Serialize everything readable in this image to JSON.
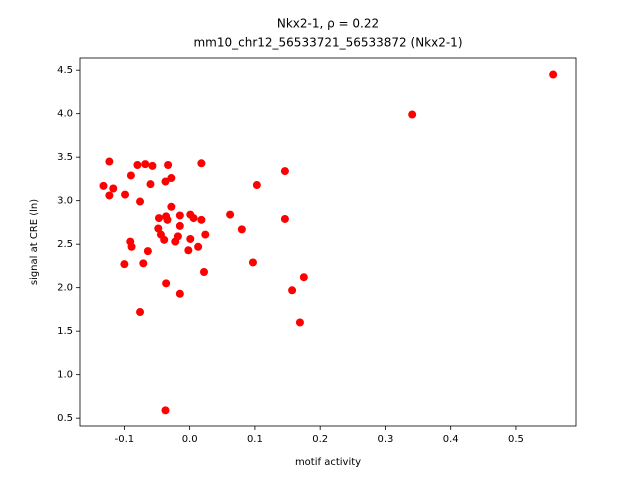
{
  "chart_data": {
    "type": "scatter",
    "title": "Nkx2-1, ρ = 0.22",
    "subtitle": "mm10_chr12_56533721_56533872 (Nkx2-1)",
    "x_label": "motif activity",
    "y_label": "signal at CRE (ln)",
    "color": "#ff0000",
    "xlim": [
      -0.168,
      0.592
    ],
    "ylim": [
      0.41,
      4.64
    ],
    "xticks": [
      -0.1,
      {
        "value": 0,
        "label": "0.0"
      },
      0.1,
      0.2,
      0.3,
      0.4,
      0.5
    ],
    "yticks": [
      0.5,
      {
        "value": 1,
        "label": "1.0"
      },
      1.5,
      {
        "value": 2,
        "label": "2.0"
      },
      2.5,
      {
        "value": 3,
        "label": "3.0"
      },
      3.5,
      {
        "value": 4,
        "label": "4.0"
      },
      4.5
    ],
    "series": [
      {
        "name": "Nkx2-1",
        "color": "#ff0000",
        "x": [
          -0.132,
          -0.123,
          -0.117,
          -0.123,
          -0.099,
          -0.09,
          -0.08,
          -0.068,
          -0.057,
          -0.06,
          -0.076,
          -0.037,
          -0.033,
          -0.028,
          0.018,
          0.103,
          0.146,
          0.341,
          0.557,
          -0.091,
          -0.089,
          -0.064,
          -0.1,
          -0.071,
          -0.047,
          -0.048,
          -0.044,
          -0.039,
          -0.036,
          -0.034,
          -0.028,
          -0.022,
          -0.015,
          -0.015,
          -0.018,
          -0.002,
          0.001,
          0.001,
          0.006,
          0.013,
          0.018,
          0.024,
          0.022,
          0.062,
          0.08,
          0.097,
          0.146,
          0.157,
          0.175,
          0.169,
          -0.036,
          -0.015,
          -0.076,
          -0.037
        ],
        "values": [
          3.17,
          3.45,
          3.14,
          3.06,
          3.07,
          3.29,
          3.41,
          3.42,
          3.4,
          3.19,
          2.99,
          3.22,
          3.41,
          3.26,
          3.43,
          3.18,
          3.34,
          3.99,
          4.45,
          2.53,
          2.47,
          2.42,
          2.27,
          2.28,
          2.8,
          2.68,
          2.61,
          2.55,
          2.82,
          2.78,
          2.93,
          2.53,
          2.83,
          2.71,
          2.59,
          2.43,
          2.56,
          2.84,
          2.8,
          2.47,
          2.78,
          2.61,
          2.18,
          2.84,
          2.67,
          2.29,
          2.79,
          1.97,
          2.12,
          1.6,
          2.05,
          1.93,
          1.72,
          0.59
        ]
      }
    ]
  }
}
